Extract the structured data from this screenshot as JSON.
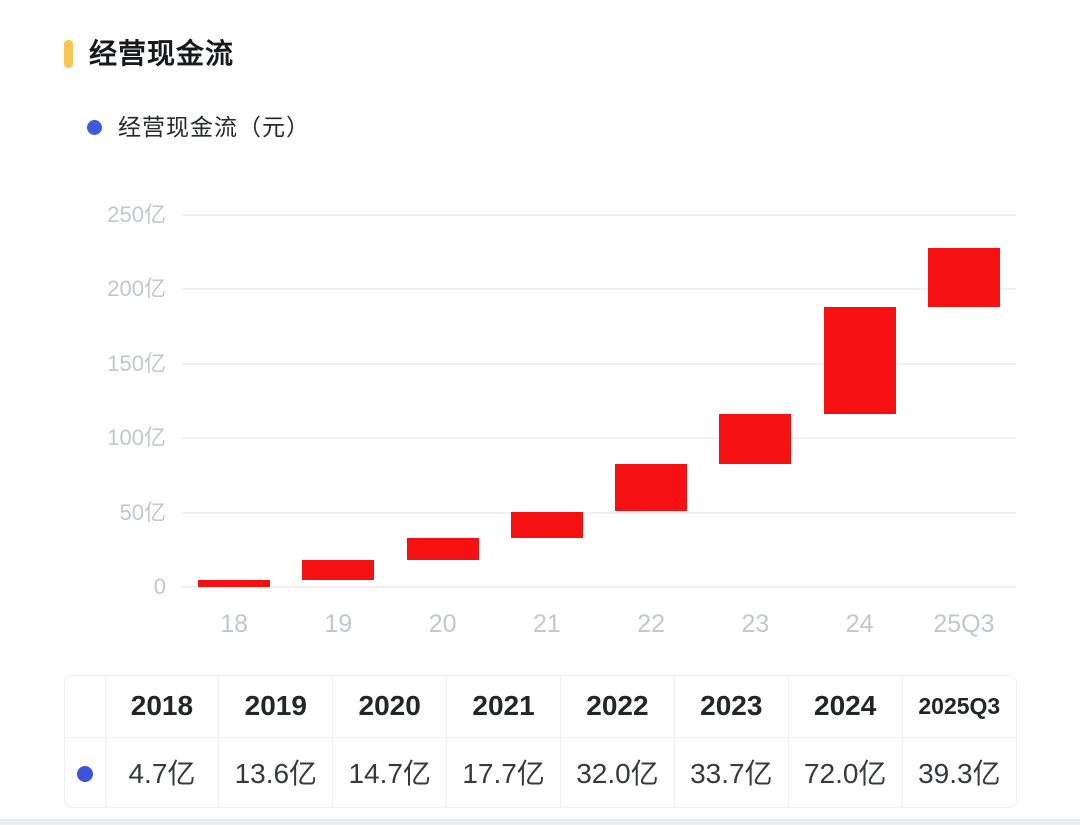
{
  "header": {
    "title": "经营现金流"
  },
  "legend": {
    "label": "经营现金流（元）"
  },
  "chart_data": {
    "type": "bar",
    "subtype": "waterfall-cumulative-floating-bars",
    "title": "经营现金流",
    "series_name": "经营现金流（元）",
    "categories": [
      "18",
      "19",
      "20",
      "21",
      "22",
      "23",
      "24",
      "25Q3"
    ],
    "values": [
      4.7,
      13.6,
      14.7,
      17.7,
      32.0,
      33.7,
      72.0,
      39.3
    ],
    "cumulative_segments": [
      [
        0,
        4.7
      ],
      [
        4.7,
        18.3
      ],
      [
        18.3,
        33.0
      ],
      [
        33.0,
        50.7
      ],
      [
        50.7,
        82.7
      ],
      [
        82.7,
        116.4
      ],
      [
        116.4,
        188.4
      ],
      [
        188.4,
        227.7
      ]
    ],
    "unit": "亿",
    "ylim": [
      0,
      250
    ],
    "ytick_step": 50,
    "ytick_labels": [
      "0",
      "50亿",
      "100亿",
      "150亿",
      "200亿",
      "250亿"
    ],
    "grid": true,
    "legend_position": "top-left",
    "bar_color": "#f51111"
  },
  "table": {
    "headers": [
      "2018",
      "2019",
      "2020",
      "2021",
      "2022",
      "2023",
      "2024",
      "2025Q3"
    ],
    "values": [
      "4.7亿",
      "13.6亿",
      "14.7亿",
      "17.7亿",
      "32.0亿",
      "33.7亿",
      "72.0亿",
      "39.3亿"
    ]
  },
  "colors": {
    "bar_red": "#f51111",
    "accent_yellow": "#f8c554",
    "legend_dot_blue": "#3b5ce0",
    "table_dot_blue": "#3b55da",
    "axis_label_gray": "#c3c6cc",
    "grid_line": "#eef0f2",
    "table_border": "#edeff3",
    "title_text": "#17191c"
  }
}
